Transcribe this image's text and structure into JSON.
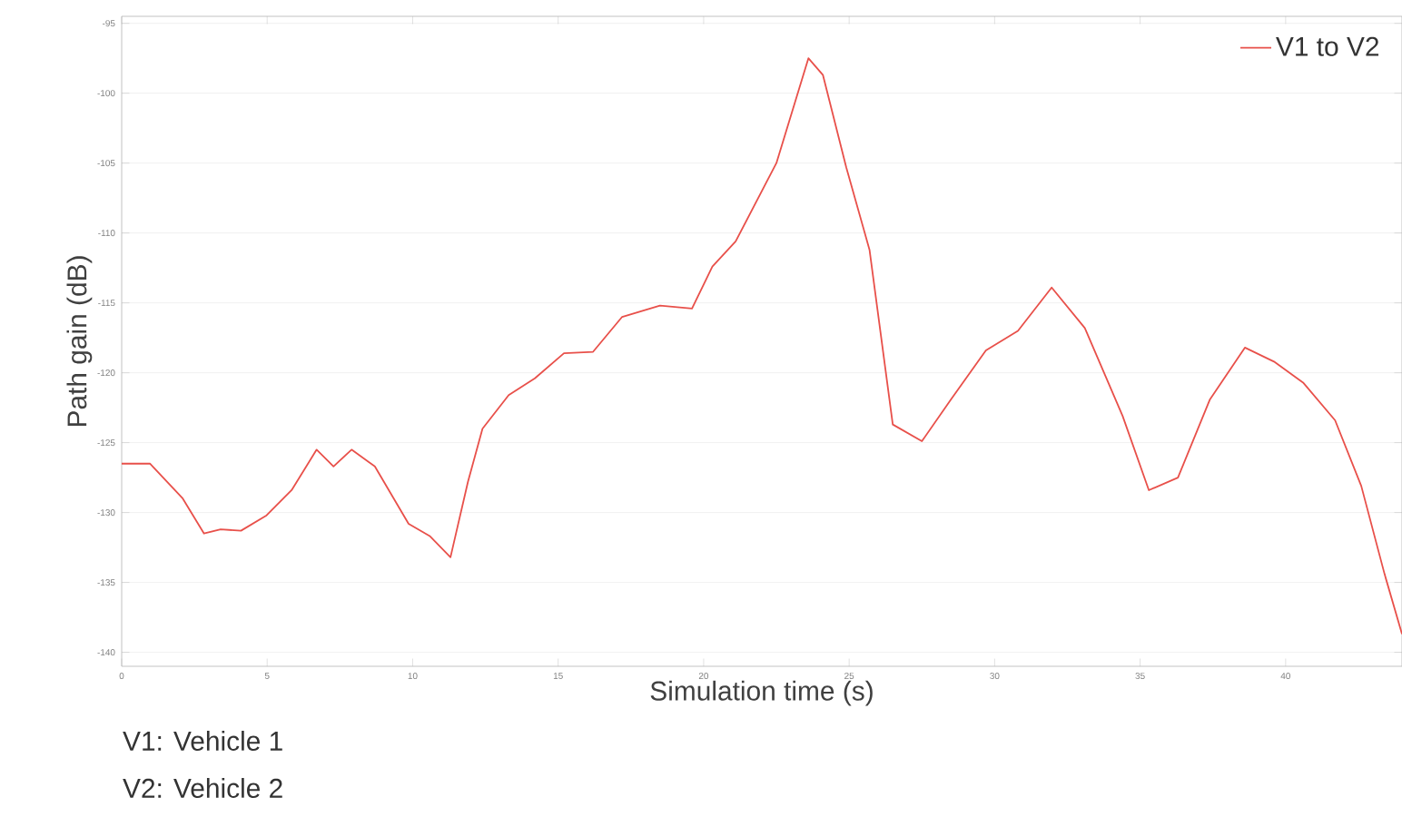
{
  "chart_data": {
    "type": "line",
    "xlabel": "Simulation time (s)",
    "ylabel": "Path gain (dB)",
    "xlim": [
      0,
      44
    ],
    "xticks": [
      0,
      5,
      10,
      15,
      20,
      25,
      30,
      35,
      40
    ],
    "ylim": [
      -141,
      -94.5
    ],
    "yticks": [
      -95,
      -100,
      -105,
      -110,
      -115,
      -120,
      -125,
      -130,
      -135,
      -140
    ],
    "grid": "y",
    "legend": "top right",
    "line_style": "solid",
    "marker": "none",
    "annotations": [
      "V1: Vehicle 1",
      "V2: Vehicle 2"
    ],
    "series": [
      {
        "name": "V1 to V2",
        "color": "#e8504a",
        "x": [
          0,
          0.97,
          2.1,
          2.83,
          3.4,
          4.1,
          4.98,
          5.84,
          6.7,
          7.28,
          7.9,
          8.7,
          9.86,
          10.6,
          11.3,
          11.9,
          12.4,
          13.3,
          14.2,
          15.2,
          16.2,
          17.2,
          18.5,
          19.6,
          20.3,
          21.1,
          22.5,
          23.6,
          24.1,
          24.9,
          25.7,
          26.5,
          27.5,
          28.5,
          29.7,
          30.8,
          31.96,
          33.1,
          34.4,
          35.3,
          36.3,
          37.4,
          38.6,
          39.6,
          40.6,
          41.7,
          42.6,
          43.4,
          44
        ],
        "values": [
          -126.5,
          -126.5,
          -129.0,
          -131.5,
          -131.2,
          -131.3,
          -130.2,
          -128.4,
          -125.5,
          -126.7,
          -125.5,
          -126.7,
          -130.8,
          -131.7,
          -133.2,
          -127.8,
          -124.0,
          -121.6,
          -120.4,
          -118.6,
          -118.5,
          -116.0,
          -115.2,
          -115.4,
          -112.4,
          -110.6,
          -105.0,
          -97.5,
          -98.7,
          -105.3,
          -111.2,
          -123.7,
          -124.9,
          -121.9,
          -118.4,
          -117.0,
          -113.9,
          -116.8,
          -123.1,
          -128.4,
          -127.5,
          -121.9,
          -118.2,
          -119.2,
          -120.7,
          -123.4,
          -128.1,
          -134.4,
          -138.7
        ]
      }
    ]
  }
}
